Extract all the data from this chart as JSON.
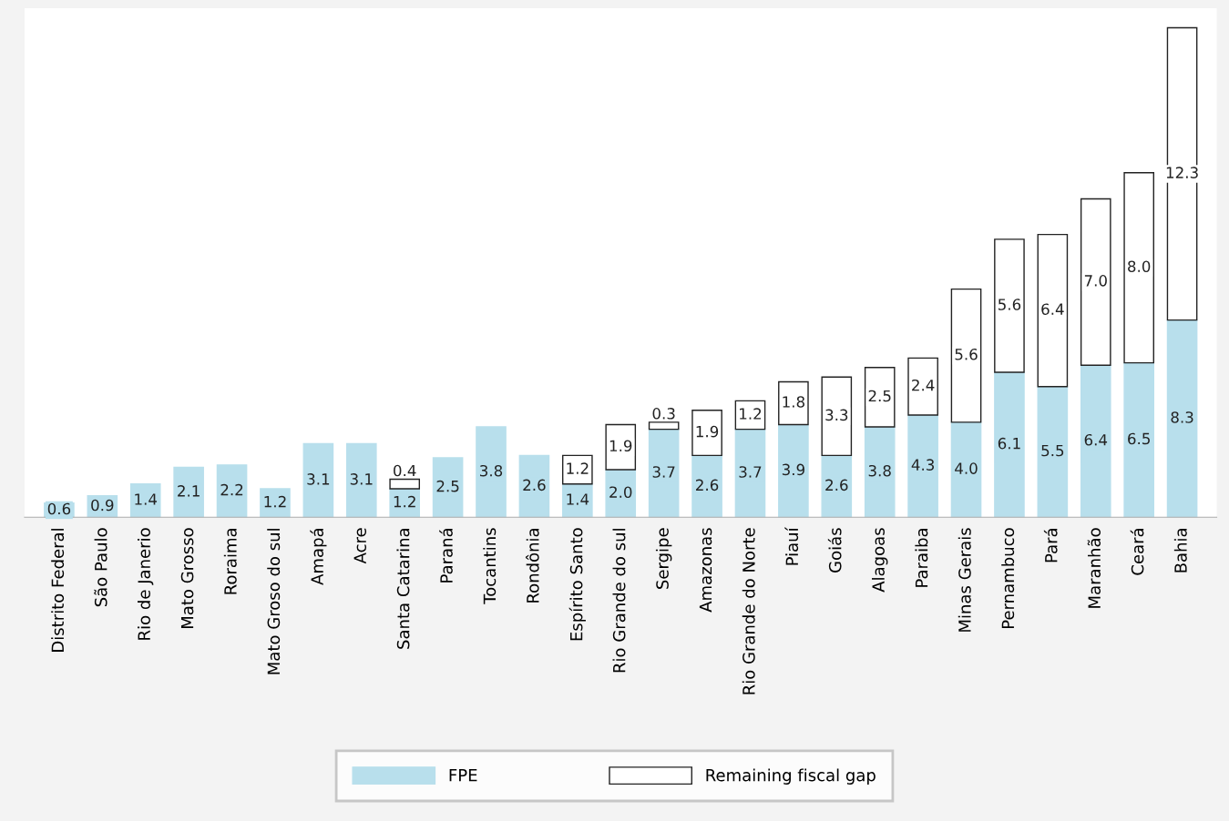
{
  "chart_data": {
    "type": "bar",
    "stacked": true,
    "legend": "bottom",
    "grid": false,
    "categories": [
      "Distrito Federal",
      "São Paulo",
      "Rio de Janerio",
      "Mato Grosso",
      "Roraima",
      "Mato Groso do sul",
      "Amapá",
      "Acre",
      "Santa Catarina",
      "Paraná",
      "Tocantins",
      "Rondônia",
      "Espírito Santo",
      "Rio Grande do sul",
      "Sergipe",
      "Amazonas",
      "Rio Grande do Norte",
      "Piauí",
      "Goiás",
      "Alagoas",
      "Paraiba",
      "Minas Gerais",
      "Pernambuco",
      "Pará",
      "Maranhão",
      "Ceará",
      "Bahia"
    ],
    "series": [
      {
        "name": "FPE",
        "color": "#b8dfec",
        "values": [
          0.6,
          0.9,
          1.4,
          2.1,
          2.2,
          1.2,
          3.1,
          3.1,
          1.2,
          2.5,
          3.8,
          2.6,
          1.4,
          2.0,
          3.7,
          2.6,
          3.7,
          3.9,
          2.6,
          3.8,
          4.3,
          4.0,
          6.1,
          5.5,
          6.4,
          6.5,
          8.3
        ],
        "value_labels": [
          "0.6",
          "0.9",
          "1.4",
          "2.1",
          "2.2",
          "1.2",
          "3.1",
          "3.1",
          "1.2",
          "2.5",
          "3.8",
          "2.6",
          "1.4",
          "2.0",
          "3.7",
          "2.6",
          "3.7",
          "3.9",
          "2.6",
          "3.8",
          "4.3",
          "4.0",
          "6.1",
          "5.5",
          "6.4",
          "6.5",
          "8.3"
        ]
      },
      {
        "name": "Remaining fiscal gap",
        "color": "#ffffff",
        "values": [
          null,
          null,
          null,
          null,
          null,
          null,
          null,
          null,
          0.4,
          null,
          null,
          null,
          1.2,
          1.9,
          0.3,
          1.9,
          1.2,
          1.8,
          3.3,
          2.5,
          2.4,
          5.6,
          5.6,
          6.4,
          7.0,
          8.0,
          12.3
        ],
        "value_labels": [
          null,
          null,
          null,
          null,
          null,
          null,
          null,
          null,
          "0.4",
          null,
          null,
          null,
          "1.2",
          "1.9",
          "0.3",
          "1.9",
          "1.2",
          "1.8",
          "3.3",
          "2.5",
          "2.4",
          "5.6",
          "5.6",
          "6.4",
          "7.0",
          "8.0",
          "12.3"
        ]
      }
    ]
  }
}
